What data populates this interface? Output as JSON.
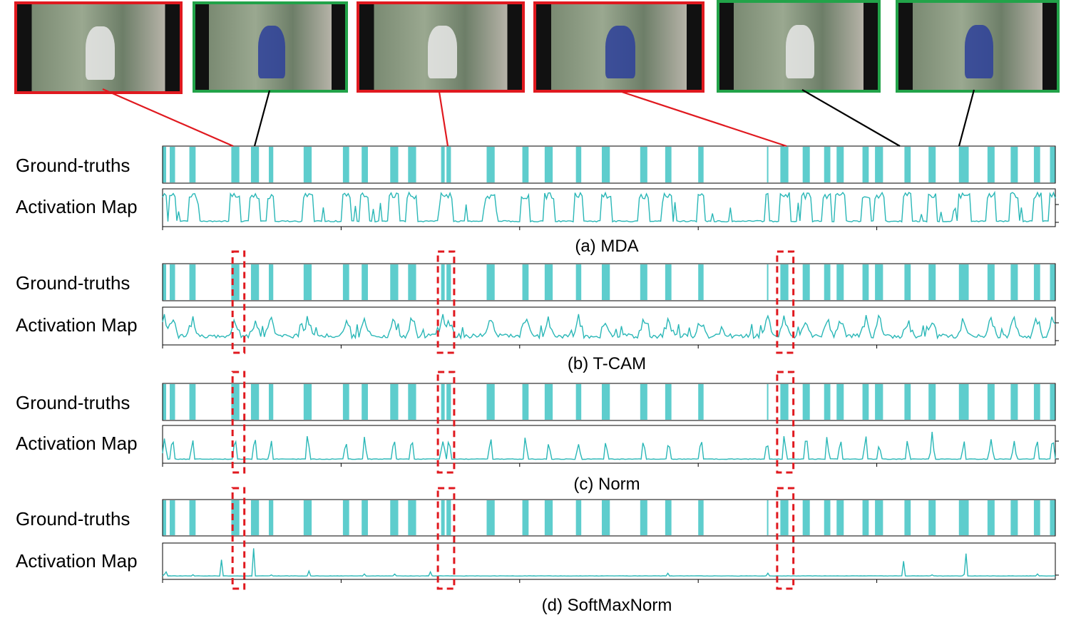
{
  "figure": {
    "row_labels": {
      "gt": "Ground-truths",
      "act": "Activation Map"
    },
    "panels": [
      {
        "id": "mda",
        "caption": "(a) MDA",
        "activation": "mda"
      },
      {
        "id": "tcam",
        "caption": "(b) T-CAM",
        "activation": "tcam"
      },
      {
        "id": "norm",
        "caption": "(c) Norm",
        "activation": "norm"
      },
      {
        "id": "softmaxnorm",
        "caption": "(d) SoftMaxNorm",
        "activation": "softmax"
      }
    ],
    "thumbnails": [
      {
        "border": "red",
        "label": "incorrect"
      },
      {
        "border": "green",
        "label": "correct"
      },
      {
        "border": "red",
        "label": "incorrect"
      },
      {
        "border": "red",
        "label": "incorrect"
      },
      {
        "border": "green",
        "label": "correct"
      },
      {
        "border": "green",
        "label": "correct"
      }
    ],
    "colors": {
      "series": "#2ab7b7",
      "gt_fill": "#5ecdcd",
      "highlight": "#e0191f",
      "correct": "#22a349",
      "incorrect": "#e0191f",
      "connector_correct": "#000000",
      "connector_incorrect": "#e0191f"
    }
  },
  "chart_data": {
    "type": "area",
    "x_range": [
      0,
      1000
    ],
    "ground_truth_intervals": [
      [
        0,
        4
      ],
      [
        8,
        14
      ],
      [
        30,
        37
      ],
      [
        77,
        86
      ],
      [
        99,
        108
      ],
      [
        119,
        124
      ],
      [
        158,
        167
      ],
      [
        202,
        209
      ],
      [
        223,
        230
      ],
      [
        255,
        264
      ],
      [
        275,
        284
      ],
      [
        312,
        316
      ],
      [
        318,
        323
      ],
      [
        363,
        372
      ],
      [
        403,
        410
      ],
      [
        428,
        437
      ],
      [
        463,
        469
      ],
      [
        492,
        501
      ],
      [
        535,
        543
      ],
      [
        563,
        570
      ],
      [
        600,
        606
      ],
      [
        677,
        678
      ],
      [
        692,
        701
      ],
      [
        717,
        725
      ],
      [
        741,
        748
      ],
      [
        755,
        763
      ],
      [
        784,
        791
      ],
      [
        798,
        807
      ],
      [
        831,
        838
      ],
      [
        858,
        866
      ],
      [
        892,
        903
      ],
      [
        924,
        932
      ],
      [
        950,
        958
      ],
      [
        976,
        983
      ],
      [
        994,
        1000
      ]
    ],
    "highlighted_segments": [
      [
        80,
        90
      ],
      [
        310,
        325
      ],
      [
        690,
        705
      ]
    ]
  }
}
